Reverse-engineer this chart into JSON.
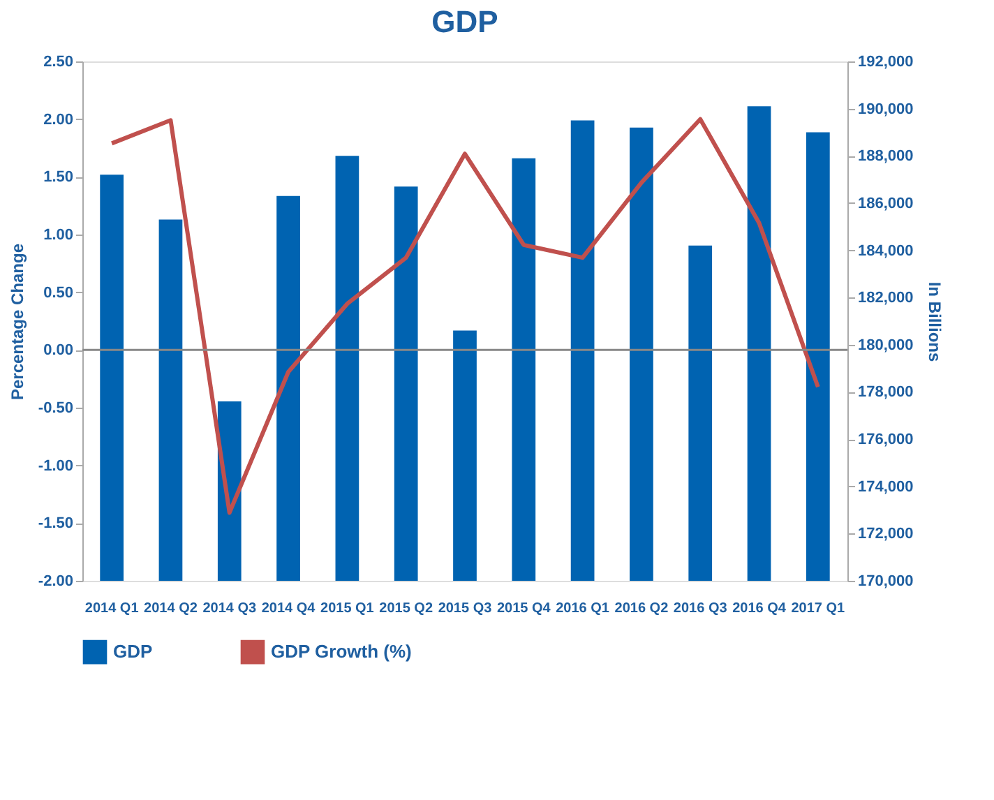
{
  "chart_data": {
    "type": "bar",
    "title": "GDP",
    "ylabel": "Percentage Change",
    "y2label": "In Billions",
    "categories": [
      "2014 Q1",
      "2014 Q2",
      "2014 Q3",
      "2014 Q4",
      "2015 Q1",
      "2015 Q2",
      "2015 Q3",
      "2015 Q4",
      "2016 Q1",
      "2016 Q2",
      "2016 Q3",
      "2016 Q4",
      "2017 Q1"
    ],
    "series": [
      {
        "name": "GDP",
        "axis": "y2",
        "color": "#0063b1",
        "values": [
          187200,
          185300,
          177600,
          186300,
          188000,
          186700,
          180600,
          187900,
          189500,
          189200,
          184200,
          190100,
          189000
        ]
      },
      {
        "name": "GDP Growth (%)",
        "type": "line",
        "axis": "y",
        "color": "#c0504d",
        "values": [
          1.79,
          1.99,
          -1.41,
          -0.19,
          0.4,
          0.8,
          1.7,
          0.91,
          0.8,
          1.45,
          2.0,
          1.1,
          -0.32
        ]
      }
    ],
    "ylim": [
      -2.0,
      2.5
    ],
    "yticks": [
      {
        "value": -2,
        "label": "-2.00"
      },
      {
        "value": -1.5,
        "label": "-1.50"
      },
      {
        "value": -1,
        "label": "-1.00"
      },
      {
        "value": -0.5,
        "label": "-0.50"
      },
      {
        "value": 0,
        "label": "0.00"
      },
      {
        "value": 0.5,
        "label": "0.50"
      },
      {
        "value": 1,
        "label": "1.00"
      },
      {
        "value": 1.5,
        "label": "1.50"
      },
      {
        "value": 2,
        "label": "2.00"
      },
      {
        "value": 2.5,
        "label": "2.50"
      }
    ],
    "y2lim": [
      170000,
      192000
    ],
    "y2ticks": [
      {
        "value": 170000,
        "label": "170,000"
      },
      {
        "value": 172000,
        "label": "172,000"
      },
      {
        "value": 174000,
        "label": "174,000"
      },
      {
        "value": 176000,
        "label": "176,000"
      },
      {
        "value": 178000,
        "label": "178,000"
      },
      {
        "value": 180000,
        "label": "180,000"
      },
      {
        "value": 182000,
        "label": "182,000"
      },
      {
        "value": 184000,
        "label": "184,000"
      },
      {
        "value": 186000,
        "label": "186,000"
      },
      {
        "value": 188000,
        "label": "188,000"
      },
      {
        "value": 190000,
        "label": "190,000"
      },
      {
        "value": 192000,
        "label": "192,000"
      }
    ],
    "ref_lines": [
      {
        "axis": "y",
        "value": 0,
        "color": "#888888"
      }
    ],
    "grid": false,
    "legend": "bottom",
    "line_style": "solid",
    "marker": "none"
  }
}
